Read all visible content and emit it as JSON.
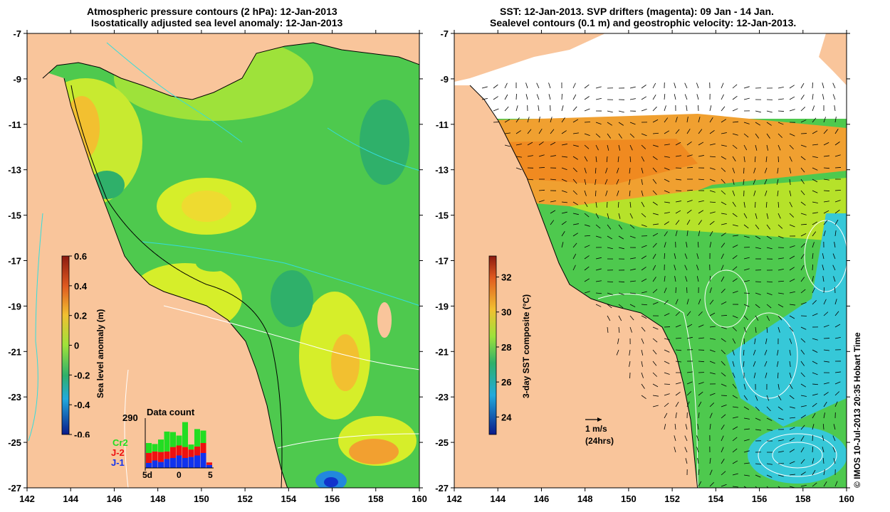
{
  "left_panel": {
    "title_line1": "Atmospheric pressure contours (2 hPa): 12-Jan-2013",
    "title_line2": "Isostatically adjusted sea level anomaly: 12-Jan-2013",
    "lat_labels": [
      "-7",
      "-9",
      "-11",
      "-13",
      "-15",
      "-17",
      "-19",
      "-21",
      "-23",
      "-25",
      "-27"
    ],
    "lon_labels": [
      "142",
      "144",
      "146",
      "148",
      "150",
      "152",
      "154",
      "156",
      "158",
      "160"
    ],
    "colorbar": {
      "label": "Sea level anomaly (m)",
      "ticks": [
        "0.6",
        "0.4",
        "0.2",
        "0",
        "-0.2",
        "-0.4",
        "-0.6"
      ]
    },
    "data_count": {
      "title": "Data count",
      "max": "290",
      "legend": [
        {
          "name": "Cr2",
          "color": "#22dd22"
        },
        {
          "name": "J-2",
          "color": "#ee1111"
        },
        {
          "name": "J-1",
          "color": "#1133ee"
        }
      ],
      "x_ticks": [
        "-5d",
        "0",
        "5"
      ],
      "bars_fraction": {
        "j1": [
          0.1,
          0.15,
          0.12,
          0.18,
          0.2,
          0.25,
          0.2,
          0.22,
          0.25,
          0.3,
          0.06
        ],
        "j2": [
          0.2,
          0.18,
          0.2,
          0.15,
          0.22,
          0.2,
          0.22,
          0.15,
          0.18,
          0.2,
          0.05
        ],
        "cr2": [
          0.2,
          0.15,
          0.25,
          0.4,
          0.3,
          0.2,
          0.5,
          0.1,
          0.35,
          0.25,
          0.0
        ]
      }
    }
  },
  "right_panel": {
    "title_line1": "SST: 12-Jan-2013. SVP drifters (magenta): 09 Jan - 14 Jan.",
    "title_line2": "Sealevel contours (0.1 m) and geostrophic velocity: 12-Jan-2013.",
    "lat_labels": [
      "-7",
      "-9",
      "-11",
      "-13",
      "-15",
      "-17",
      "-19",
      "-21",
      "-23",
      "-25",
      "-27"
    ],
    "lon_labels": [
      "142",
      "144",
      "146",
      "148",
      "150",
      "152",
      "154",
      "156",
      "158",
      "160"
    ],
    "colorbar": {
      "label": "3-day SST composite (°C)",
      "ticks": [
        "32",
        "30",
        "28",
        "26",
        "24"
      ]
    },
    "scale_arrow": {
      "line1": "1 m/s",
      "line2": "(24hrs)"
    }
  },
  "credit": "© IMOS 10-Jul-2013 20:35 Hobart Time",
  "colors": {
    "land": "#f9c59b",
    "sea_green": "#4ec94e",
    "sea_yellow": "#d6ee2a",
    "sst_orange": "#f0a030",
    "sst_cyan": "#36c8d8"
  }
}
